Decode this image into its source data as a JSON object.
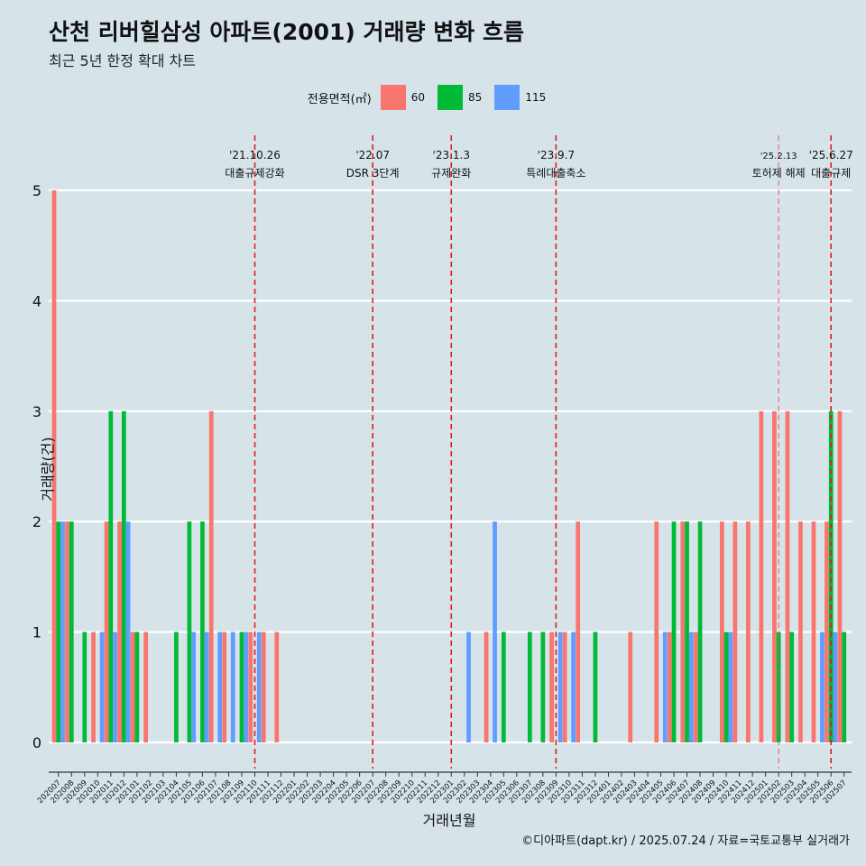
{
  "title": "산천 리버힐삼성 아파트(2001) 거래량 변화 흐름",
  "subtitle": "최근 5년 한정 확대 차트",
  "caption": "©디아파트(dapt.kr) / 2025.07.24 / 자료=국토교통부 실거래가",
  "legend": {
    "title": "전용면적(㎡)",
    "items": [
      {
        "label": "60",
        "color": "#f8766d"
      },
      {
        "label": "85",
        "color": "#00ba38"
      },
      {
        "label": "115",
        "color": "#619cff"
      }
    ]
  },
  "chart_data": {
    "type": "bar",
    "xlabel": "거래년월",
    "ylabel": "거래량(건)",
    "ylim": [
      0,
      5
    ],
    "yticks": [
      0,
      1,
      2,
      3,
      4,
      5
    ],
    "grid": true,
    "legend_position": "top",
    "categories": [
      "202007",
      "202008",
      "202009",
      "202010",
      "202011",
      "202012",
      "202101",
      "202102",
      "202103",
      "202104",
      "202105",
      "202106",
      "202107",
      "202108",
      "202109",
      "202110",
      "202111",
      "202112",
      "202201",
      "202202",
      "202203",
      "202204",
      "202205",
      "202206",
      "202207",
      "202208",
      "202209",
      "202210",
      "202211",
      "202212",
      "202301",
      "202302",
      "202303",
      "202304",
      "202305",
      "202306",
      "202307",
      "202308",
      "202309",
      "202310",
      "202311",
      "202312",
      "202401",
      "202402",
      "202403",
      "202404",
      "202405",
      "202406",
      "202407",
      "202408",
      "202409",
      "202410",
      "202411",
      "202412",
      "202501",
      "202502",
      "202503",
      "202504",
      "202505",
      "202506",
      "202507"
    ],
    "series": [
      {
        "name": "60",
        "color": "#f8766d",
        "values": [
          5,
          2,
          0,
          1,
          2,
          2,
          1,
          1,
          0,
          0,
          0,
          0,
          3,
          1,
          0,
          1,
          1,
          1,
          0,
          0,
          0,
          0,
          0,
          0,
          0,
          0,
          0,
          0,
          0,
          0,
          0,
          0,
          0,
          1,
          0,
          0,
          0,
          0,
          1,
          1,
          2,
          0,
          0,
          0,
          1,
          0,
          2,
          1,
          2,
          1,
          0,
          2,
          2,
          2,
          3,
          3,
          3,
          2,
          2,
          2,
          3
        ]
      },
      {
        "name": "85",
        "color": "#00ba38",
        "values": [
          2,
          2,
          1,
          0,
          3,
          3,
          1,
          0,
          0,
          1,
          2,
          2,
          0,
          0,
          1,
          0,
          0,
          0,
          0,
          0,
          0,
          0,
          0,
          0,
          0,
          0,
          0,
          0,
          0,
          0,
          0,
          0,
          0,
          0,
          1,
          0,
          1,
          1,
          0,
          0,
          0,
          1,
          0,
          0,
          0,
          0,
          0,
          2,
          2,
          2,
          0,
          1,
          0,
          0,
          0,
          1,
          1,
          0,
          0,
          3,
          1
        ]
      },
      {
        "name": "115",
        "color": "#619cff",
        "values": [
          2,
          0,
          0,
          1,
          1,
          2,
          0,
          0,
          0,
          0,
          1,
          1,
          1,
          1,
          1,
          1,
          0,
          0,
          0,
          0,
          0,
          0,
          0,
          0,
          0,
          0,
          0,
          0,
          0,
          0,
          0,
          1,
          0,
          2,
          0,
          0,
          0,
          0,
          1,
          1,
          0,
          0,
          0,
          0,
          0,
          0,
          1,
          0,
          1,
          0,
          0,
          1,
          0,
          0,
          0,
          0,
          0,
          0,
          1,
          1,
          0
        ]
      }
    ],
    "annotations": [
      {
        "date": "'21.10.26",
        "text": "대출규제강화",
        "category": "202110",
        "style": "dashed"
      },
      {
        "date": "'22.07",
        "text": "DSR 3단계",
        "category": "202207",
        "style": "dashed"
      },
      {
        "date": "'23.1.3",
        "text": "규제완화",
        "category": "202301",
        "style": "dashed"
      },
      {
        "date": "'23.9.7",
        "text": "특례대출축소",
        "category": "202309",
        "style": "dashed"
      },
      {
        "date": "'25.2.13",
        "text": "토허제 해제",
        "category": "202502",
        "style": "thin-dashed"
      },
      {
        "date": "'25.6.27",
        "text": "대출규제",
        "category": "202506",
        "style": "dashed"
      }
    ]
  }
}
